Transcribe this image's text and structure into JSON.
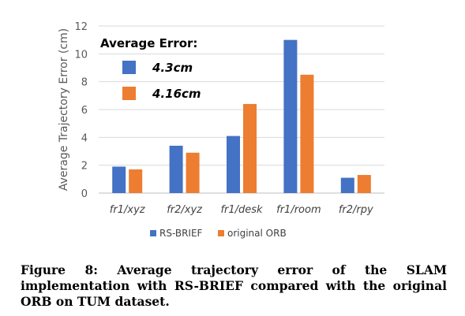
{
  "chart_data": {
    "type": "bar",
    "categories": [
      "fr1/xyz",
      "fr2/xyz",
      "fr1/desk",
      "fr1/room",
      "fr2/rpy"
    ],
    "series": [
      {
        "name": "RS-BRIEF",
        "color": "#4472C4",
        "values": [
          1.9,
          3.4,
          4.1,
          11.0,
          1.1
        ]
      },
      {
        "name": "original ORB",
        "color": "#ED7D31",
        "values": [
          1.7,
          2.9,
          6.4,
          8.5,
          1.3
        ]
      }
    ],
    "ylabel": "Average Trajectory Error (cm)",
    "xlabel": "",
    "ylim": [
      0,
      12
    ],
    "yticks": [
      0,
      2,
      4,
      6,
      8,
      10,
      12
    ],
    "grid": true,
    "legend_position": "bottom",
    "annotation": {
      "title": "Average Error:",
      "values": [
        "4.3cm",
        "4.16cm"
      ]
    }
  },
  "caption": "Figure 8: Average trajectory error of the SLAM implementation with RS-BRIEF compared with the original ORB on TUM dataset."
}
